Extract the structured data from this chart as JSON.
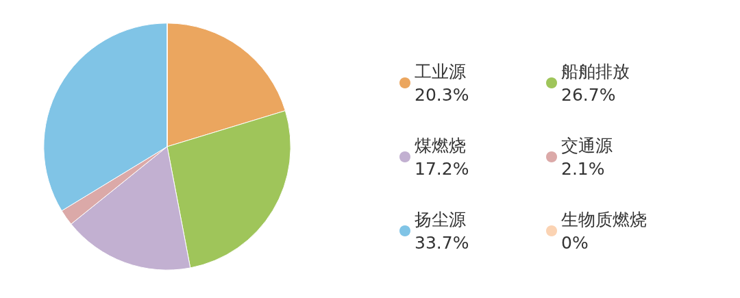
{
  "chart_data": {
    "type": "pie",
    "categories": [
      "工业源",
      "船舶排放",
      "煤燃烧",
      "交通源",
      "扬尘源",
      "生物质燃烧"
    ],
    "values": [
      20.3,
      26.7,
      17.2,
      2.1,
      33.7,
      0
    ],
    "colors": [
      "#eba65f",
      "#9fc55a",
      "#c2b0d1",
      "#dba9a8",
      "#80c4e6",
      "#fbd3b3"
    ],
    "value_labels": [
      "20.3%",
      "26.7%",
      "17.2%",
      "2.1%",
      "33.7%",
      "0%"
    ],
    "legend": "right"
  }
}
